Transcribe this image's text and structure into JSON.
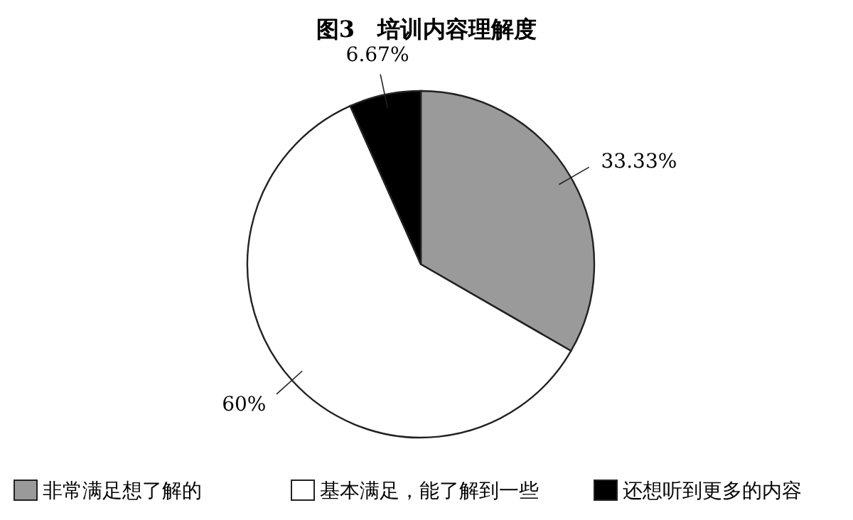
{
  "chart_data": {
    "type": "pie",
    "title": "图3　培训内容理解度",
    "categories": [
      "非常满足想了解的",
      "基本满足，能了解到一些",
      "还想听到更多的内容"
    ],
    "values": [
      33.33,
      60,
      6.67
    ],
    "colors": [
      "#9a9a9a",
      "#ffffff",
      "#000000"
    ],
    "value_labels": [
      "33.33%",
      "60%",
      "6.67%"
    ],
    "legend": "bottom"
  }
}
